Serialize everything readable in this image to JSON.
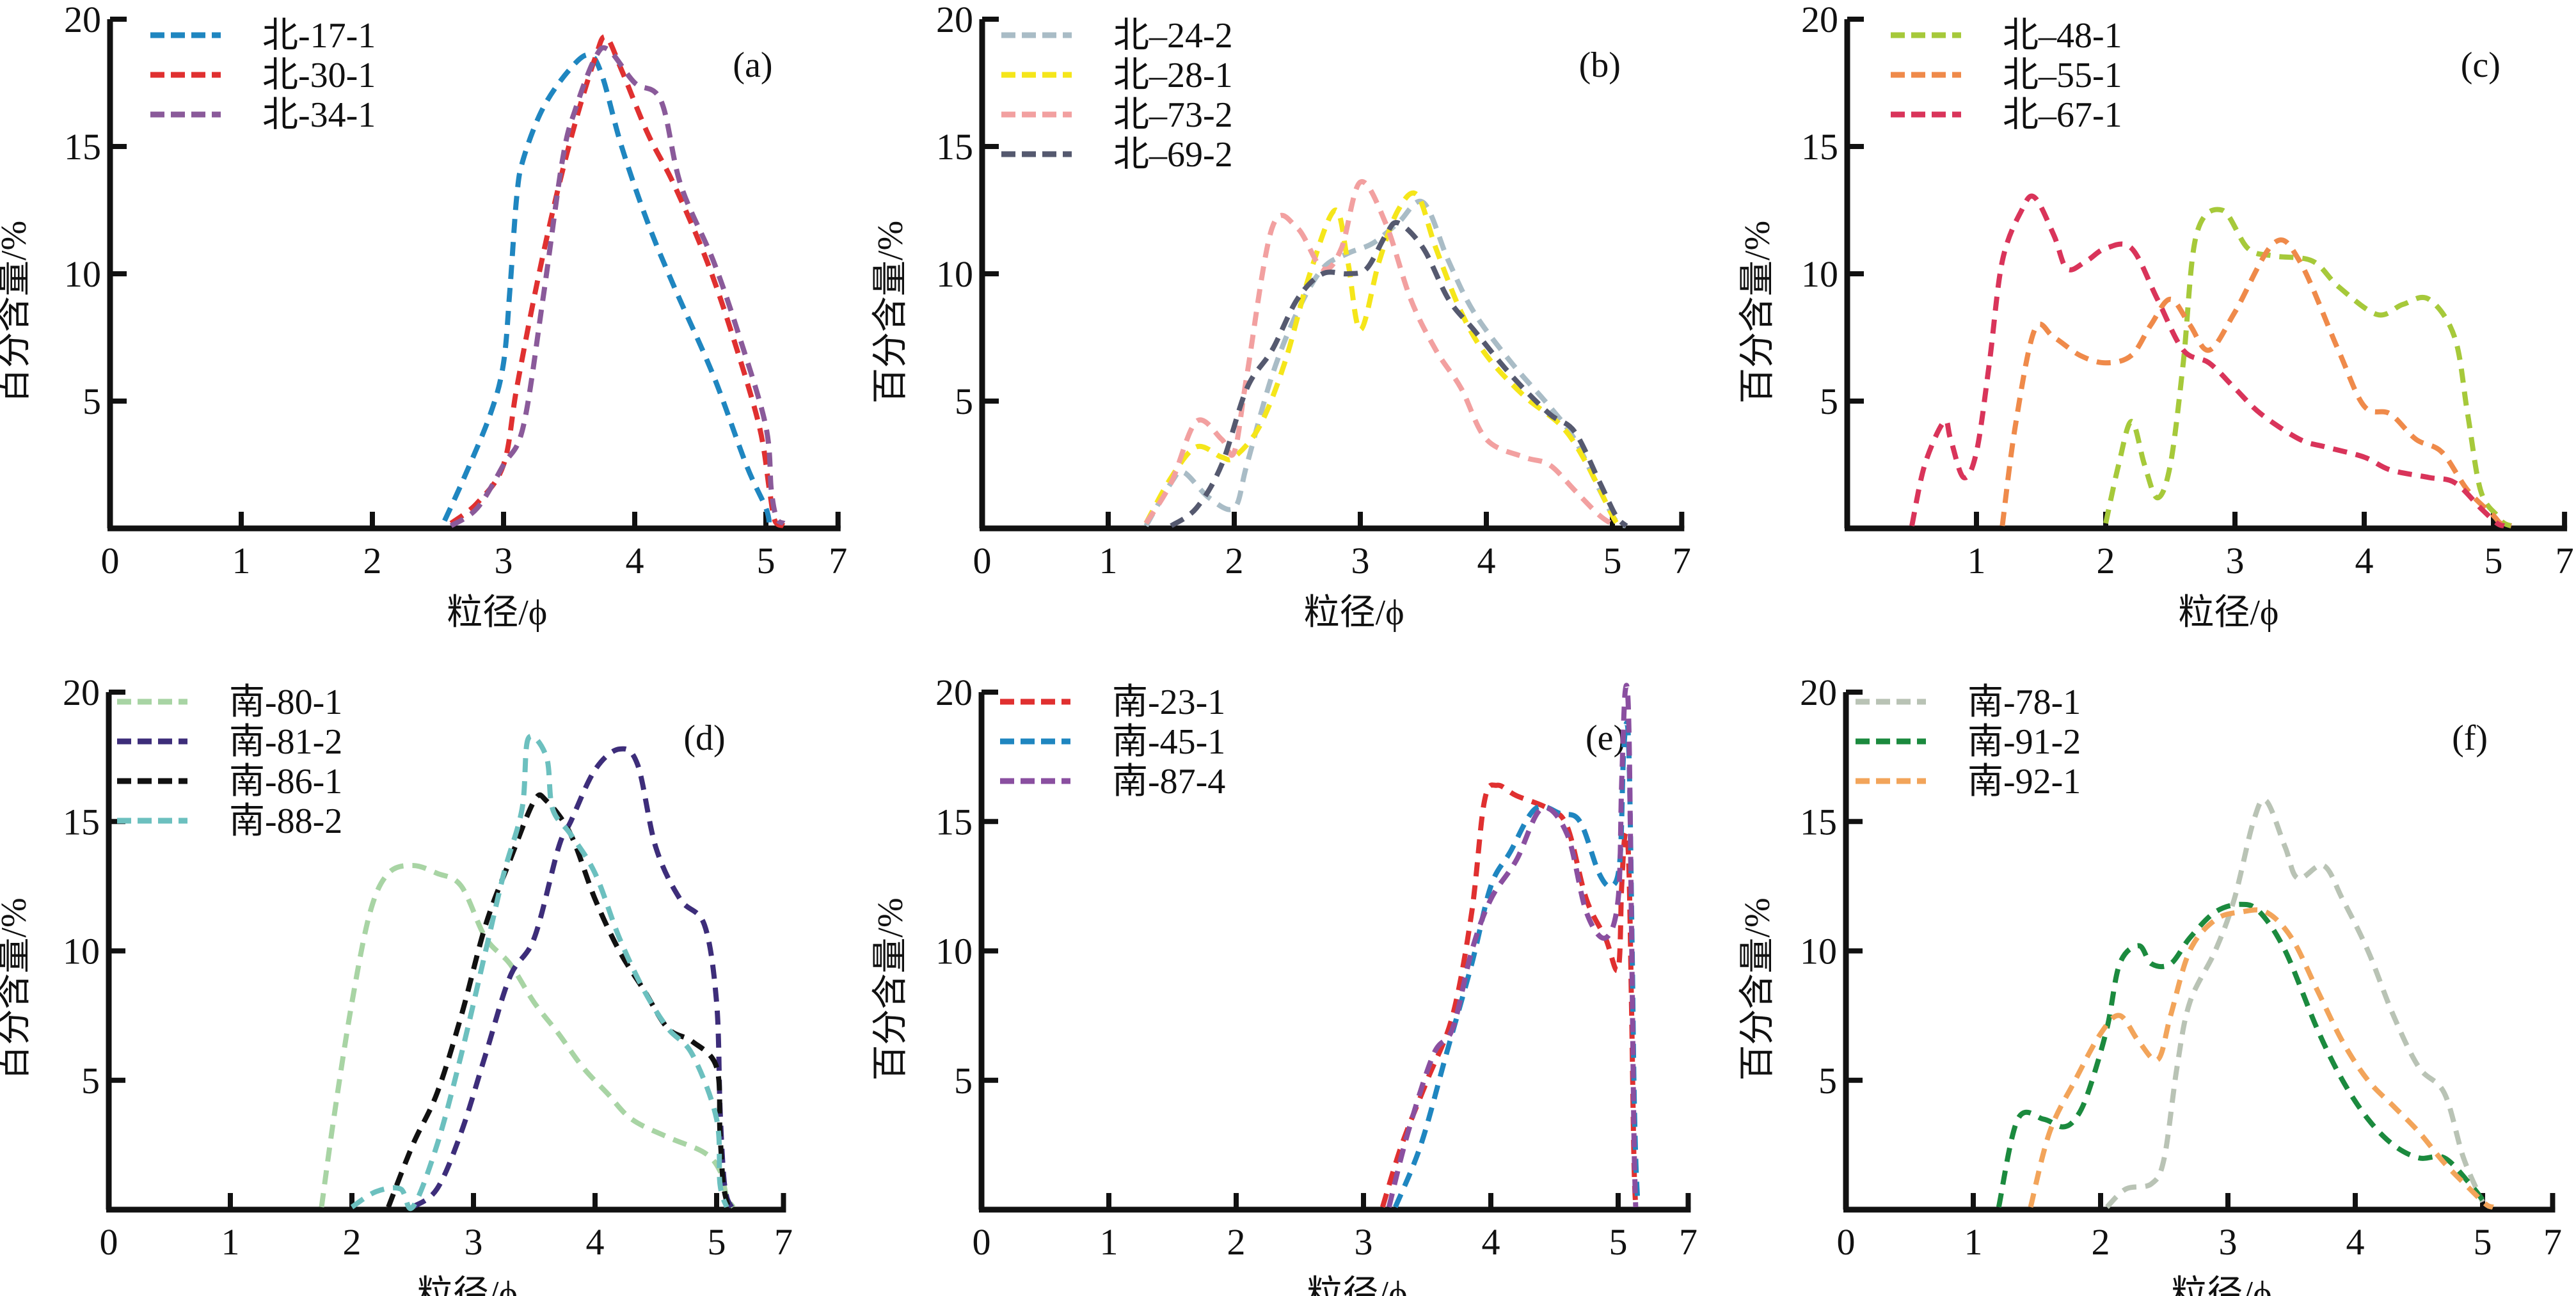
{
  "chart_data": [
    {
      "type": "line",
      "panel_label": "(a)",
      "xlabel": "粒径/ϕ",
      "ylabel": "百分含量/%",
      "x_tick_labels": [
        "0",
        "1",
        "2",
        "3",
        "4",
        "5",
        "7"
      ],
      "y_tick_labels": [
        "5",
        "10",
        "15",
        "20"
      ],
      "ylim": [
        0,
        20
      ],
      "xlim": [
        0,
        7
      ],
      "legend_position": "top-left",
      "series": [
        {
          "name": "北-17-1",
          "color": "#1f86c0",
          "x": [
            2.55,
            2.7,
            2.9,
            3.0,
            3.05,
            3.1,
            3.15,
            3.3,
            3.5,
            3.65,
            3.75,
            3.9,
            4.1,
            4.3,
            4.6,
            4.85,
            5.0,
            5.1
          ],
          "y": [
            0.3,
            2.0,
            4.5,
            6.5,
            9.5,
            13.0,
            14.5,
            16.5,
            18.0,
            18.6,
            17.8,
            15.0,
            12.0,
            9.5,
            6.0,
            2.5,
            0.8,
            0.1
          ]
        },
        {
          "name": "北-30-1",
          "color": "#e03030",
          "x": [
            2.6,
            2.8,
            3.0,
            3.1,
            3.25,
            3.4,
            3.55,
            3.7,
            3.78,
            3.9,
            4.1,
            4.3,
            4.55,
            4.75,
            4.95,
            5.1,
            5.25,
            5.5
          ],
          "y": [
            0.2,
            1.0,
            2.5,
            5.5,
            9.5,
            13.0,
            16.0,
            18.5,
            19.3,
            18.0,
            15.5,
            13.5,
            10.5,
            7.5,
            4.0,
            1.5,
            0.3,
            0.1
          ]
        },
        {
          "name": "北-34-1",
          "color": "#8a5a9a",
          "x": [
            2.6,
            2.8,
            3.0,
            3.15,
            3.3,
            3.45,
            3.55,
            3.7,
            3.8,
            4.0,
            4.2,
            4.35,
            4.6,
            4.8,
            5.0,
            5.15,
            5.3,
            5.5
          ],
          "y": [
            0.1,
            0.8,
            2.5,
            4.0,
            9.0,
            14.5,
            16.5,
            18.5,
            18.8,
            17.5,
            16.8,
            13.5,
            10.5,
            7.5,
            4.0,
            1.5,
            0.4,
            0.2
          ]
        }
      ]
    },
    {
      "type": "line",
      "panel_label": "(b)",
      "xlabel": "粒径/ϕ",
      "ylabel": "百分含量/%",
      "x_tick_labels": [
        "0",
        "1",
        "2",
        "3",
        "4",
        "5",
        "7"
      ],
      "y_tick_labels": [
        "5",
        "10",
        "15",
        "20"
      ],
      "ylim": [
        0,
        20
      ],
      "xlim": [
        0,
        7
      ],
      "legend_position": "top-left",
      "series": [
        {
          "name": "北–24-2",
          "color": "#a9bcc6",
          "x": [
            1.3,
            1.5,
            1.6,
            1.8,
            2.0,
            2.1,
            2.3,
            2.5,
            2.7,
            2.9,
            3.1,
            3.3,
            3.5,
            3.7,
            3.9,
            4.2,
            4.5,
            4.7,
            4.9,
            5.1,
            5.4
          ],
          "y": [
            0.1,
            1.8,
            2.2,
            1.2,
            0.8,
            2.5,
            6.0,
            8.5,
            10.2,
            10.8,
            11.2,
            12.0,
            12.8,
            10.5,
            8.5,
            6.5,
            4.8,
            3.5,
            1.5,
            0.3,
            0.1
          ]
        },
        {
          "name": "北–28-1",
          "color": "#f5e61a",
          "x": [
            1.3,
            1.5,
            1.7,
            1.9,
            2.0,
            2.2,
            2.4,
            2.6,
            2.8,
            2.9,
            3.0,
            3.15,
            3.3,
            3.45,
            3.6,
            3.8,
            4.0,
            4.3,
            4.6,
            4.8,
            5.0,
            5.2
          ],
          "y": [
            0.2,
            2.0,
            3.2,
            2.8,
            2.8,
            4.0,
            6.5,
            10.0,
            12.5,
            10.5,
            7.8,
            10.5,
            12.5,
            13.1,
            11.0,
            8.5,
            6.8,
            5.2,
            4.0,
            2.5,
            0.5,
            0.1
          ]
        },
        {
          "name": "北–73-2",
          "color": "#f2a0a0",
          "x": [
            1.3,
            1.5,
            1.7,
            1.9,
            2.0,
            2.1,
            2.3,
            2.5,
            2.7,
            2.85,
            3.0,
            3.2,
            3.4,
            3.6,
            3.8,
            4.0,
            4.3,
            4.5,
            4.7,
            4.9,
            5.1
          ],
          "y": [
            0.2,
            1.8,
            4.2,
            3.5,
            3.0,
            6.0,
            11.8,
            11.8,
            10.2,
            11.0,
            13.6,
            12.0,
            9.0,
            7.0,
            5.5,
            3.5,
            2.8,
            2.5,
            1.5,
            0.5,
            0.1
          ]
        },
        {
          "name": "北–69-2",
          "color": "#55596f",
          "x": [
            1.5,
            1.7,
            1.9,
            2.1,
            2.3,
            2.5,
            2.7,
            2.9,
            3.05,
            3.2,
            3.3,
            3.5,
            3.7,
            3.9,
            4.2,
            4.5,
            4.7,
            4.9,
            5.1,
            5.4
          ],
          "y": [
            0.1,
            0.8,
            2.5,
            5.5,
            7.0,
            9.0,
            10.0,
            10.0,
            10.2,
            11.5,
            12.0,
            11.0,
            9.0,
            7.8,
            6.0,
            4.5,
            3.8,
            1.8,
            0.5,
            0.1
          ]
        }
      ]
    },
    {
      "type": "line",
      "panel_label": "(c)",
      "xlabel": "粒径/ϕ",
      "ylabel": "百分含量/%",
      "x_tick_labels": [
        "",
        "1",
        "2",
        "3",
        "4",
        "5",
        "7"
      ],
      "y_tick_labels": [
        "5",
        "10",
        "15",
        "20"
      ],
      "ylim": [
        0,
        20
      ],
      "xlim": [
        0,
        7
      ],
      "legend_position": "top-left",
      "series": [
        {
          "name": "北–48-1",
          "color": "#a6c93a",
          "x": [
            2.0,
            2.1,
            2.2,
            2.3,
            2.4,
            2.5,
            2.6,
            2.7,
            2.9,
            3.1,
            3.3,
            3.6,
            3.8,
            4.1,
            4.3,
            4.5,
            4.7,
            4.8,
            4.9,
            5.1,
            5.3,
            5.5
          ],
          "y": [
            0.2,
            2.5,
            4.2,
            2.5,
            1.2,
            2.5,
            6.5,
            11.5,
            12.5,
            11.0,
            10.7,
            10.5,
            9.5,
            8.4,
            8.8,
            9.0,
            7.5,
            4.5,
            1.5,
            0.5,
            0.2,
            0.1
          ]
        },
        {
          "name": "北–55-1",
          "color": "#ef8a4a",
          "x": [
            1.2,
            1.3,
            1.45,
            1.6,
            1.8,
            2.0,
            2.2,
            2.35,
            2.5,
            2.65,
            2.8,
            3.0,
            3.3,
            3.5,
            3.8,
            4.0,
            4.2,
            4.4,
            4.6,
            4.8,
            5.0,
            5.2,
            5.5
          ],
          "y": [
            0.1,
            4.0,
            7.8,
            7.5,
            6.8,
            6.5,
            6.8,
            8.0,
            9.0,
            8.0,
            7.0,
            8.5,
            11.2,
            10.5,
            7.0,
            4.8,
            4.5,
            3.5,
            3.0,
            1.5,
            0.5,
            0.2,
            0.1
          ]
        },
        {
          "name": "北–67-1",
          "color": "#d9345a",
          "x": [
            0.5,
            0.6,
            0.75,
            0.8,
            0.9,
            1.0,
            1.1,
            1.2,
            1.35,
            1.45,
            1.6,
            1.7,
            1.85,
            2.0,
            2.2,
            2.4,
            2.6,
            2.8,
            3.0,
            3.2,
            3.5,
            3.7,
            4.0,
            4.2,
            4.5,
            4.7,
            4.9,
            5.1,
            5.3
          ],
          "y": [
            0.1,
            2.5,
            4.2,
            3.5,
            2.0,
            3.0,
            6.5,
            10.5,
            12.5,
            13.0,
            11.5,
            10.2,
            10.5,
            11.0,
            11.0,
            9.0,
            7.0,
            6.5,
            5.5,
            4.5,
            3.5,
            3.2,
            2.8,
            2.3,
            2.0,
            1.8,
            0.8,
            0.2,
            0.1
          ]
        }
      ]
    },
    {
      "type": "line",
      "panel_label": "(d)",
      "xlabel": "粒径/ϕ",
      "ylabel": "百分含量/%",
      "x_tick_labels": [
        "0",
        "1",
        "2",
        "3",
        "4",
        "5",
        "7"
      ],
      "y_tick_labels": [
        "5",
        "10",
        "15",
        "20"
      ],
      "ylim": [
        0,
        20
      ],
      "xlim": [
        0,
        7
      ],
      "legend_position": "top-left",
      "series": [
        {
          "name": "南-80-1",
          "color": "#a8d4a4",
          "x": [
            1.75,
            1.85,
            2.0,
            2.15,
            2.3,
            2.5,
            2.7,
            2.9,
            3.1,
            3.3,
            3.5,
            3.7,
            3.9,
            4.1,
            4.3,
            4.6,
            4.9,
            5.1,
            5.3,
            5.5
          ],
          "y": [
            0.1,
            3.5,
            8.0,
            11.5,
            13.0,
            13.3,
            13.0,
            12.5,
            10.5,
            9.5,
            8.0,
            6.8,
            5.5,
            4.5,
            3.5,
            2.8,
            2.2,
            1.5,
            0.5,
            0.1
          ]
        },
        {
          "name": "南-81-2",
          "color": "#3d2d7a",
          "x": [
            2.5,
            2.7,
            2.9,
            3.1,
            3.3,
            3.5,
            3.7,
            3.8,
            4.0,
            4.2,
            4.35,
            4.5,
            4.7,
            4.9,
            5.0,
            5.1,
            5.2,
            5.3,
            5.45
          ],
          "y": [
            0.1,
            0.8,
            3.0,
            6.0,
            9.0,
            10.5,
            14.0,
            15.0,
            17.0,
            17.8,
            17.2,
            14.0,
            12.0,
            11.0,
            8.0,
            4.0,
            1.5,
            0.5,
            0.1
          ]
        },
        {
          "name": "南-86-1",
          "color": "#111111",
          "x": [
            2.3,
            2.5,
            2.7,
            2.9,
            3.1,
            3.3,
            3.5,
            3.6,
            3.8,
            4.0,
            4.2,
            4.4,
            4.6,
            4.8,
            5.0,
            5.1,
            5.2,
            5.35
          ],
          "y": [
            0.1,
            2.5,
            4.5,
            7.5,
            11.0,
            13.5,
            15.8,
            15.8,
            14.5,
            12.0,
            10.0,
            8.5,
            7.0,
            6.5,
            5.5,
            3.0,
            1.0,
            0.1
          ]
        },
        {
          "name": "南-88-2",
          "color": "#6cc0bf",
          "x": [
            2.0,
            2.2,
            2.4,
            2.5,
            2.7,
            2.9,
            3.1,
            3.25,
            3.4,
            3.45,
            3.6,
            3.65,
            3.8,
            4.0,
            4.2,
            4.4,
            4.6,
            4.8,
            5.0,
            5.1,
            5.3
          ],
          "y": [
            0.1,
            0.7,
            0.8,
            0.1,
            2.5,
            6.0,
            10.0,
            13.0,
            15.5,
            18.2,
            17.5,
            15.5,
            14.5,
            13.0,
            10.5,
            8.5,
            7.0,
            6.0,
            3.5,
            1.0,
            0.1
          ]
        }
      ]
    },
    {
      "type": "line",
      "panel_label": "(e)",
      "xlabel": "粒径/ϕ",
      "ylabel": "百分含量/%",
      "x_tick_labels": [
        "0",
        "1",
        "2",
        "3",
        "4",
        "5",
        "7"
      ],
      "y_tick_labels": [
        "5",
        "10",
        "15",
        "20"
      ],
      "ylim": [
        0,
        20
      ],
      "xlim": [
        0,
        7
      ],
      "legend_position": "top-left",
      "series": [
        {
          "name": "南-23-1",
          "color": "#e03030",
          "x": [
            3.15,
            3.3,
            3.5,
            3.7,
            3.85,
            3.95,
            4.05,
            4.2,
            4.45,
            4.6,
            4.75,
            4.9,
            5.0,
            5.1,
            5.2,
            5.3,
            5.38,
            5.45,
            5.5
          ],
          "y": [
            0.1,
            2.5,
            5.0,
            7.5,
            11.5,
            15.8,
            16.4,
            16.0,
            15.5,
            14.8,
            12.0,
            10.5,
            9.3,
            12.5,
            14.5,
            13.5,
            8.0,
            2.0,
            0.1
          ]
        },
        {
          "name": "南-45-1",
          "color": "#1f86c0",
          "x": [
            3.25,
            3.45,
            3.65,
            3.85,
            4.0,
            4.15,
            4.35,
            4.55,
            4.7,
            4.85,
            4.95,
            5.05,
            5.15,
            5.25,
            5.32,
            5.4,
            5.45,
            5.5,
            5.55
          ],
          "y": [
            0.1,
            2.5,
            6.0,
            9.5,
            12.5,
            13.8,
            15.5,
            15.3,
            15.0,
            13.0,
            12.5,
            13.5,
            17.5,
            18.8,
            17.0,
            10.0,
            5.0,
            2.0,
            0.5
          ]
        },
        {
          "name": "南-87-4",
          "color": "#8a4fa0",
          "x": [
            3.2,
            3.35,
            3.55,
            3.7,
            3.85,
            4.0,
            4.2,
            4.4,
            4.6,
            4.75,
            4.9,
            5.0,
            5.1,
            5.2,
            5.3,
            5.38,
            5.45,
            5.5
          ],
          "y": [
            0.1,
            3.0,
            6.0,
            7.0,
            10.0,
            12.0,
            13.5,
            15.5,
            14.5,
            11.5,
            10.5,
            12.0,
            16.5,
            20.0,
            19.0,
            11.0,
            3.0,
            0.1
          ]
        }
      ]
    },
    {
      "type": "line",
      "panel_label": "(f)",
      "xlabel": "粒径/ϕ",
      "ylabel": "百分含量/%",
      "x_tick_labels": [
        "0",
        "1",
        "2",
        "3",
        "4",
        "5",
        "7"
      ],
      "y_tick_labels": [
        "5",
        "10",
        "15",
        "20"
      ],
      "ylim": [
        0,
        20
      ],
      "xlim": [
        0,
        7
      ],
      "legend_position": "top-left",
      "series": [
        {
          "name": "南-78-1",
          "color": "#b9c3b5",
          "x": [
            2.05,
            2.2,
            2.4,
            2.5,
            2.6,
            2.7,
            2.9,
            3.05,
            3.2,
            3.3,
            3.45,
            3.55,
            3.75,
            3.9,
            4.1,
            4.3,
            4.5,
            4.7,
            4.85,
            5.0
          ],
          "y": [
            0.1,
            0.8,
            1.0,
            2.0,
            5.5,
            8.0,
            10.0,
            12.0,
            15.0,
            15.8,
            14.0,
            12.8,
            13.3,
            12.0,
            10.0,
            7.5,
            5.5,
            4.5,
            2.0,
            0.3
          ]
        },
        {
          "name": "南-91-2",
          "color": "#1b8a3e",
          "x": [
            1.2,
            1.35,
            1.55,
            1.7,
            1.8,
            1.9,
            2.05,
            2.15,
            2.3,
            2.4,
            2.55,
            2.7,
            2.9,
            3.1,
            3.25,
            3.45,
            3.7,
            3.9,
            4.1,
            4.3,
            4.5,
            4.7,
            4.9,
            5.05,
            5.2
          ],
          "y": [
            0.1,
            3.5,
            3.5,
            3.2,
            3.5,
            4.5,
            7.0,
            9.5,
            10.2,
            9.5,
            9.5,
            10.5,
            11.5,
            11.8,
            11.5,
            10.0,
            7.0,
            5.0,
            3.5,
            2.5,
            2.0,
            2.0,
            1.0,
            0.3,
            0.1
          ]
        },
        {
          "name": "南-92-1",
          "color": "#f2a45a",
          "x": [
            1.45,
            1.6,
            1.8,
            2.0,
            2.15,
            2.3,
            2.45,
            2.55,
            2.7,
            2.9,
            3.1,
            3.3,
            3.5,
            3.7,
            3.9,
            4.1,
            4.3,
            4.5,
            4.7,
            4.9,
            5.1,
            5.3
          ],
          "y": [
            0.1,
            3.0,
            5.0,
            6.8,
            7.5,
            6.5,
            5.8,
            7.5,
            10.0,
            11.2,
            11.5,
            11.5,
            10.5,
            8.5,
            6.5,
            5.0,
            4.0,
            3.0,
            1.8,
            0.8,
            0.2,
            0.1
          ]
        }
      ]
    }
  ]
}
